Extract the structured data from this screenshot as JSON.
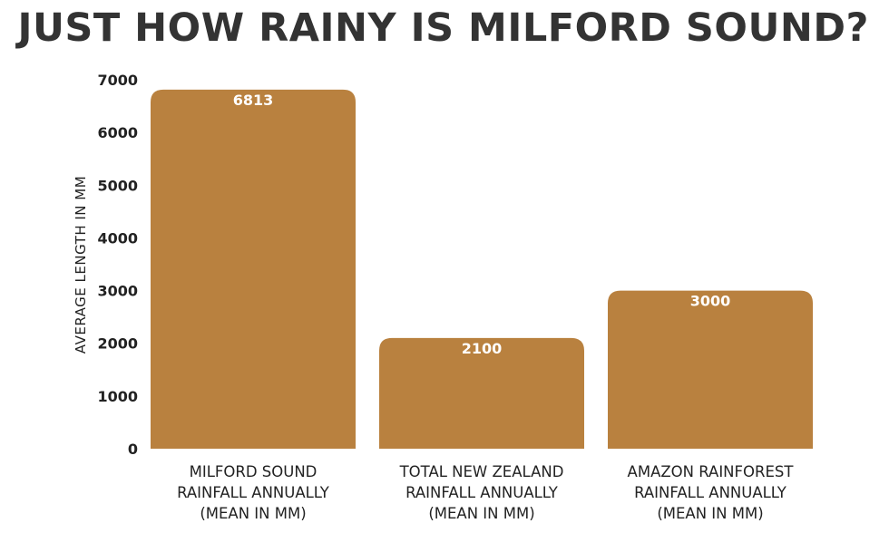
{
  "chart_data": {
    "type": "bar",
    "title": "JUST HOW RAINY IS MILFORD SOUND?",
    "ylabel": "AVERAGE LENGTH IN MM",
    "xlabel": "",
    "ylim": [
      0,
      7000
    ],
    "yticks": [
      0,
      1000,
      2000,
      3000,
      4000,
      5000,
      6000,
      7000
    ],
    "categories": [
      [
        "MILFORD SOUND",
        "RAINFALL ANNUALLY",
        "(MEAN IN MM)"
      ],
      [
        "TOTAL NEW ZEALAND",
        "RAINFALL ANNUALLY",
        "(MEAN IN MM)"
      ],
      [
        "AMAZON RAINFOREST",
        "RAINFALL ANNUALLY",
        "(MEAN IN MM)"
      ]
    ],
    "values": [
      6813,
      2100,
      3000
    ],
    "data_labels": [
      "6813",
      "2100",
      "3000"
    ],
    "bar_color": "#B9813F",
    "grid": false,
    "legend": "none"
  }
}
